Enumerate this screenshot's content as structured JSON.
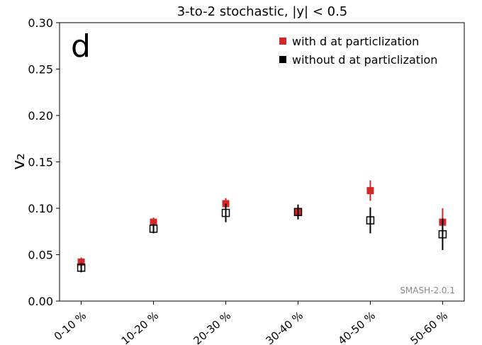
{
  "chart_data": {
    "type": "errorbar",
    "title": "3-to-2 stochastic,  |y| < 0.5",
    "ylabel": "v₂",
    "panel_label": "d",
    "annotation": "SMASH-2.0.1",
    "categories": [
      "0-10 %",
      "10-20 %",
      "20-30 %",
      "30-40 %",
      "40-50 %",
      "50-60 %"
    ],
    "series": [
      {
        "name": "with d at particlization",
        "color": "#d62728",
        "marker": "filled",
        "values": [
          0.042,
          0.085,
          0.105,
          0.096,
          0.119,
          0.085
        ],
        "errors": [
          0.005,
          0.005,
          0.006,
          0.008,
          0.011,
          0.015
        ]
      },
      {
        "name": "without d at particlization",
        "color": "#000000",
        "marker": "open",
        "values": [
          0.036,
          0.078,
          0.095,
          0.096,
          0.087,
          0.072
        ],
        "errors": [
          0.005,
          0.005,
          0.01,
          0.008,
          0.014,
          0.017
        ]
      }
    ],
    "ylim": [
      0,
      0.3
    ],
    "yticks": [
      {
        "value": 0,
        "label": "0.00"
      },
      {
        "value": 0.05,
        "label": "0.05"
      },
      {
        "value": 0.1,
        "label": "0.10"
      },
      {
        "value": 0.15,
        "label": "0.15"
      },
      {
        "value": 0.2,
        "label": "0.20"
      },
      {
        "value": 0.25,
        "label": "0.25"
      },
      {
        "value": 0.3,
        "label": "0.30"
      }
    ],
    "legend": "upper right"
  }
}
